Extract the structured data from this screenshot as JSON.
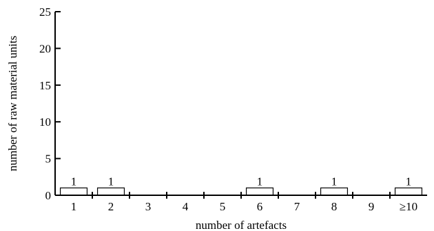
{
  "chart_data": {
    "type": "bar",
    "categories": [
      "1",
      "2",
      "3",
      "4",
      "5",
      "6",
      "7",
      "8",
      "9",
      "≥10"
    ],
    "values": [
      1,
      1,
      0,
      0,
      0,
      1,
      0,
      1,
      0,
      1
    ],
    "data_labels": [
      "1",
      "1",
      "",
      "",
      "",
      "1",
      "",
      "1",
      "",
      "1"
    ],
    "xlabel": "number of artefacts",
    "ylabel": "number of raw material units",
    "ylim": [
      0,
      25
    ],
    "yticks": [
      "0",
      "5",
      "10",
      "15",
      "20",
      "25"
    ],
    "grid": false
  }
}
